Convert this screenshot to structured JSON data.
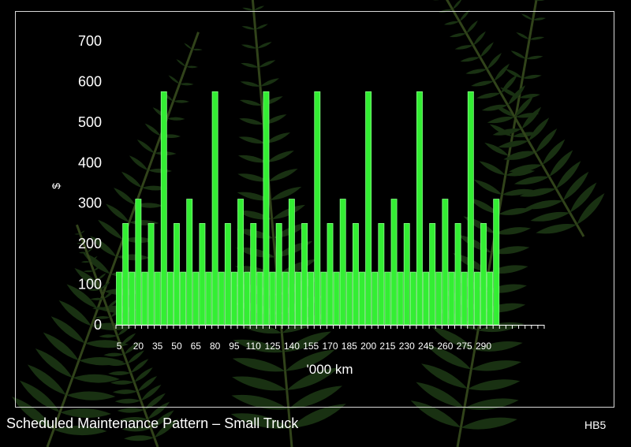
{
  "slide": {
    "caption": "Scheduled Maintenance Pattern – Small Truck",
    "code": "HB5"
  },
  "colors": {
    "background": "#000000",
    "bar_fill": "#33ee33",
    "bar_fill_light": "#88ff88",
    "axis_text": "#ffffff",
    "fern": "#2f5a22"
  },
  "chart_data": {
    "type": "bar",
    "title": "",
    "xlabel": "'000 km",
    "ylabel": "$",
    "ylim": [
      0,
      700
    ],
    "yticks": [
      0,
      100,
      200,
      300,
      400,
      500,
      600,
      700
    ],
    "grid": false,
    "legend": "none",
    "categories": [
      "5",
      "10",
      "15",
      "20",
      "25",
      "30",
      "35",
      "40",
      "45",
      "50",
      "55",
      "60",
      "65",
      "70",
      "75",
      "80",
      "85",
      "90",
      "95",
      "100",
      "105",
      "110",
      "115",
      "120",
      "125",
      "130",
      "135",
      "140",
      "145",
      "150",
      "155",
      "160",
      "165",
      "170",
      "175",
      "180",
      "185",
      "190",
      "195",
      "200",
      "205",
      "210",
      "215",
      "220",
      "225",
      "230",
      "235",
      "240",
      "245",
      "250",
      "255",
      "260",
      "265",
      "270",
      "275",
      "280",
      "285",
      "290",
      "295",
      "300",
      "305",
      "310",
      "315",
      "320",
      "325",
      "330",
      "335"
    ],
    "xtick_labels": [
      "5",
      "20",
      "35",
      "50",
      "65",
      "80",
      "95",
      "110",
      "125",
      "140",
      "155",
      "170",
      "185",
      "200",
      "215",
      "230",
      "245",
      "260",
      "275",
      "290"
    ],
    "values": [
      130,
      250,
      130,
      310,
      130,
      250,
      130,
      575,
      130,
      250,
      130,
      310,
      130,
      250,
      130,
      575,
      130,
      250,
      130,
      310,
      130,
      250,
      130,
      575,
      130,
      250,
      130,
      310,
      130,
      250,
      130,
      575,
      130,
      250,
      130,
      310,
      130,
      250,
      130,
      575,
      130,
      250,
      130,
      310,
      130,
      250,
      130,
      575,
      130,
      250,
      130,
      310,
      130,
      250,
      130,
      575,
      130,
      250,
      130,
      310,
      null,
      null,
      null,
      null,
      null,
      null,
      null
    ]
  }
}
